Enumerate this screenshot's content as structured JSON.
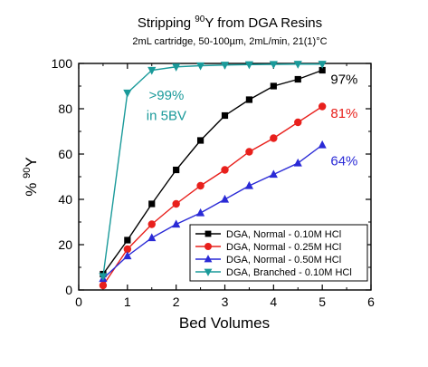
{
  "chart_data": {
    "type": "line",
    "title_main": "Stripping ",
    "title_sup": "90",
    "title_rest": "Y from DGA Resins",
    "subtitle": "2mL cartridge, 50-100µm, 2mL/min, 21(1)°C",
    "xlabel": "Bed Volumes",
    "ylabel_main": "% ",
    "ylabel_sup": "90",
    "ylabel_rest": "Y",
    "xlim": [
      0,
      6
    ],
    "ylim": [
      0,
      100
    ],
    "xticks": [
      "0",
      "1",
      "2",
      "3",
      "4",
      "5",
      "6"
    ],
    "yticks": [
      "0",
      "20",
      "40",
      "60",
      "80",
      "100"
    ],
    "legend_position": "bottom-right",
    "series": [
      {
        "name": "DGA, Normal - 0.10M HCl",
        "color": "#000000",
        "marker": "square",
        "x": [
          0.5,
          1,
          1.5,
          2,
          2.5,
          3,
          3.5,
          4,
          4.5,
          5
        ],
        "y": [
          7,
          22,
          38,
          53,
          66,
          77,
          84,
          90,
          93,
          97
        ]
      },
      {
        "name": "DGA, Normal - 0.25M HCl",
        "color": "#e8201c",
        "marker": "circle",
        "x": [
          0.5,
          1,
          1.5,
          2,
          2.5,
          3,
          3.5,
          4,
          4.5,
          5
        ],
        "y": [
          2,
          18,
          29,
          38,
          46,
          53,
          61,
          67,
          74,
          81
        ]
      },
      {
        "name": "DGA, Normal - 0.50M HCl",
        "color": "#2a2ad6",
        "marker": "triangle-up",
        "x": [
          0.5,
          1,
          1.5,
          2,
          2.5,
          3,
          3.5,
          4,
          4.5,
          5
        ],
        "y": [
          5,
          15,
          23,
          29,
          34,
          40,
          46,
          51,
          56,
          64
        ]
      },
      {
        "name": "DGA, Branched - 0.10M HCl",
        "color": "#1a9a9a",
        "marker": "triangle-down",
        "x": [
          0.5,
          1,
          1.5,
          2,
          2.5,
          3,
          3.5,
          4,
          4.5,
          5
        ],
        "y": [
          6,
          87,
          97,
          98.5,
          99,
          99.3,
          99.5,
          99.6,
          99.7,
          99.7
        ]
      }
    ],
    "annotations": [
      {
        "text": ">99%",
        "color": "#1a9a9a",
        "x": 1.8,
        "y": 84
      },
      {
        "text": "in 5BV",
        "color": "#1a9a9a",
        "x": 1.8,
        "y": 75
      },
      {
        "text": "97%",
        "color": "#000000",
        "x": 5.45,
        "y": 91
      },
      {
        "text": "81%",
        "color": "#e8201c",
        "x": 5.45,
        "y": 76
      },
      {
        "text": "64%",
        "color": "#2a2ad6",
        "x": 5.45,
        "y": 55
      }
    ]
  }
}
